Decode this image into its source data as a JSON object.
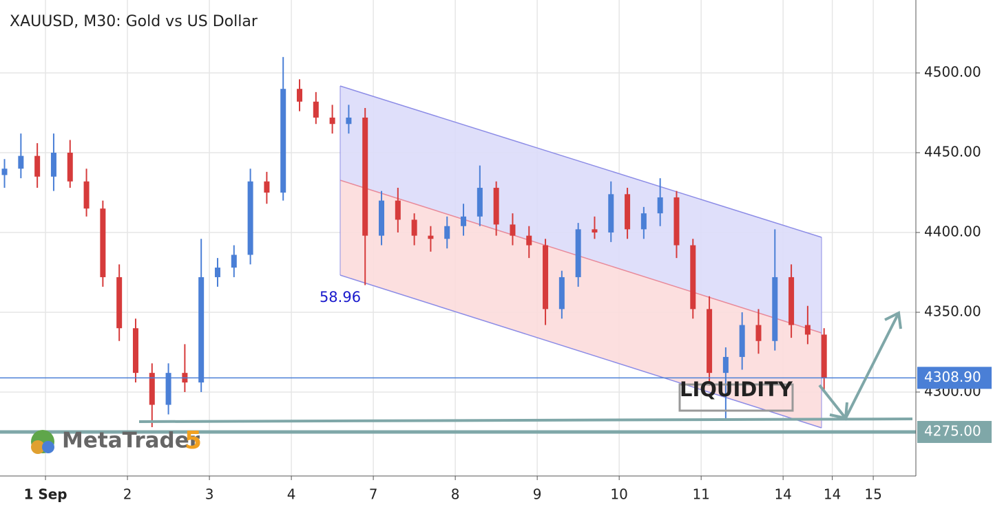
{
  "chart_data": {
    "type": "candlestick",
    "title": "XAUUSD, M30: Gold vs US Dollar",
    "logo": {
      "text": "MetaTrader",
      "number": "5"
    },
    "annotations": {
      "channel_low": "58.96",
      "zone": "LIQUIDITY"
    },
    "up_color": "#4a7fd6",
    "down_color": "#d63b3b",
    "grid": true,
    "xlim": [
      -0.555,
      10.62
    ],
    "ylim": [
      4247.4,
      4545.7
    ],
    "xticks": [
      {
        "value": 0,
        "label": "1 Sep"
      },
      {
        "value": 1,
        "label": "2"
      },
      {
        "value": 2,
        "label": "3"
      },
      {
        "value": 3,
        "label": "4"
      },
      {
        "value": 4,
        "label": "7"
      },
      {
        "value": 5,
        "label": "8"
      },
      {
        "value": 6,
        "label": "9"
      },
      {
        "value": 7,
        "label": "10"
      },
      {
        "value": 8,
        "label": "11"
      },
      {
        "value": 9,
        "label": "14"
      },
      {
        "value": 9.6,
        "label": "14"
      },
      {
        "value": 10.1,
        "label": "15"
      }
    ],
    "yticks": [
      {
        "value": 4300,
        "label": "4300.00"
      },
      {
        "value": 4350,
        "label": "4350.00"
      },
      {
        "value": 4400,
        "label": "4400.00"
      },
      {
        "value": 4450,
        "label": "4450.00"
      },
      {
        "value": 4500,
        "label": "4500.00"
      }
    ],
    "price_lines": [
      {
        "value": 4308.9,
        "label": "4308.90",
        "color": "#4a7fd6"
      },
      {
        "value": 4275,
        "label": "4275.00",
        "color": "#7fa7a8"
      }
    ],
    "x": [
      -0.5,
      -0.3,
      -0.1,
      0.1,
      0.3,
      0.5,
      0.7,
      0.9,
      1.1,
      1.3,
      1.5,
      1.7,
      1.9,
      2.1,
      2.3,
      2.5,
      2.7,
      2.9,
      3.1,
      3.3,
      3.5,
      3.7,
      3.9,
      4.1,
      4.3,
      4.5,
      4.7,
      4.9,
      5.1,
      5.3,
      5.5,
      5.7,
      5.9,
      6.1,
      6.3,
      6.5,
      6.7,
      6.9,
      7.1,
      7.3,
      7.5,
      7.7,
      7.9,
      8.1,
      8.3,
      8.5,
      8.7,
      8.9,
      9.1,
      9.3,
      9.5
    ],
    "open": [
      4436,
      4440,
      4448,
      4435,
      4450,
      4432,
      4415,
      4372,
      4340,
      4312,
      4292,
      4312,
      4306,
      4372,
      4378,
      4386,
      4432,
      4425,
      4490,
      4482,
      4472,
      4468,
      4472,
      4398,
      4420,
      4408,
      4398,
      4396,
      4404,
      4410,
      4428,
      4405,
      4398,
      4392,
      4352,
      4372,
      4402,
      4400,
      4424,
      4402,
      4412,
      4422,
      4392,
      4352,
      4312,
      4322,
      4342,
      4332,
      4372,
      4342,
      4336
    ],
    "high": [
      4446,
      4462,
      4456,
      4462,
      4458,
      4440,
      4420,
      4380,
      4346,
      4318,
      4318,
      4330,
      4396,
      4384,
      4392,
      4440,
      4438,
      4510,
      4496,
      4488,
      4480,
      4480,
      4478,
      4426,
      4428,
      4412,
      4404,
      4410,
      4418,
      4442,
      4432,
      4412,
      4404,
      4396,
      4376,
      4406,
      4410,
      4432,
      4428,
      4416,
      4434,
      4426,
      4396,
      4360,
      4328,
      4350,
      4352,
      4402,
      4380,
      4354,
      4340
    ],
    "low": [
      4428,
      4434,
      4428,
      4426,
      4428,
      4410,
      4366,
      4332,
      4306,
      4278,
      4286,
      4300,
      4300,
      4366,
      4372,
      4380,
      4418,
      4420,
      4476,
      4468,
      4462,
      4462,
      4367,
      4392,
      4400,
      4392,
      4388,
      4390,
      4398,
      4404,
      4398,
      4392,
      4384,
      4342,
      4346,
      4366,
      4396,
      4394,
      4396,
      4396,
      4404,
      4384,
      4346,
      4304,
      4283,
      4314,
      4324,
      4326,
      4334,
      4330,
      4300
    ],
    "close": [
      4440,
      4448,
      4435,
      4450,
      4432,
      4415,
      4372,
      4340,
      4312,
      4292,
      4312,
      4306,
      4372,
      4378,
      4386,
      4432,
      4425,
      4490,
      4482,
      4472,
      4468,
      4472,
      4398,
      4420,
      4408,
      4398,
      4396,
      4404,
      4410,
      4428,
      4405,
      4398,
      4392,
      4352,
      4372,
      4402,
      4400,
      4424,
      4402,
      4412,
      4422,
      4392,
      4352,
      4312,
      4322,
      4342,
      4332,
      4372,
      4342,
      4336,
      4309
    ]
  }
}
